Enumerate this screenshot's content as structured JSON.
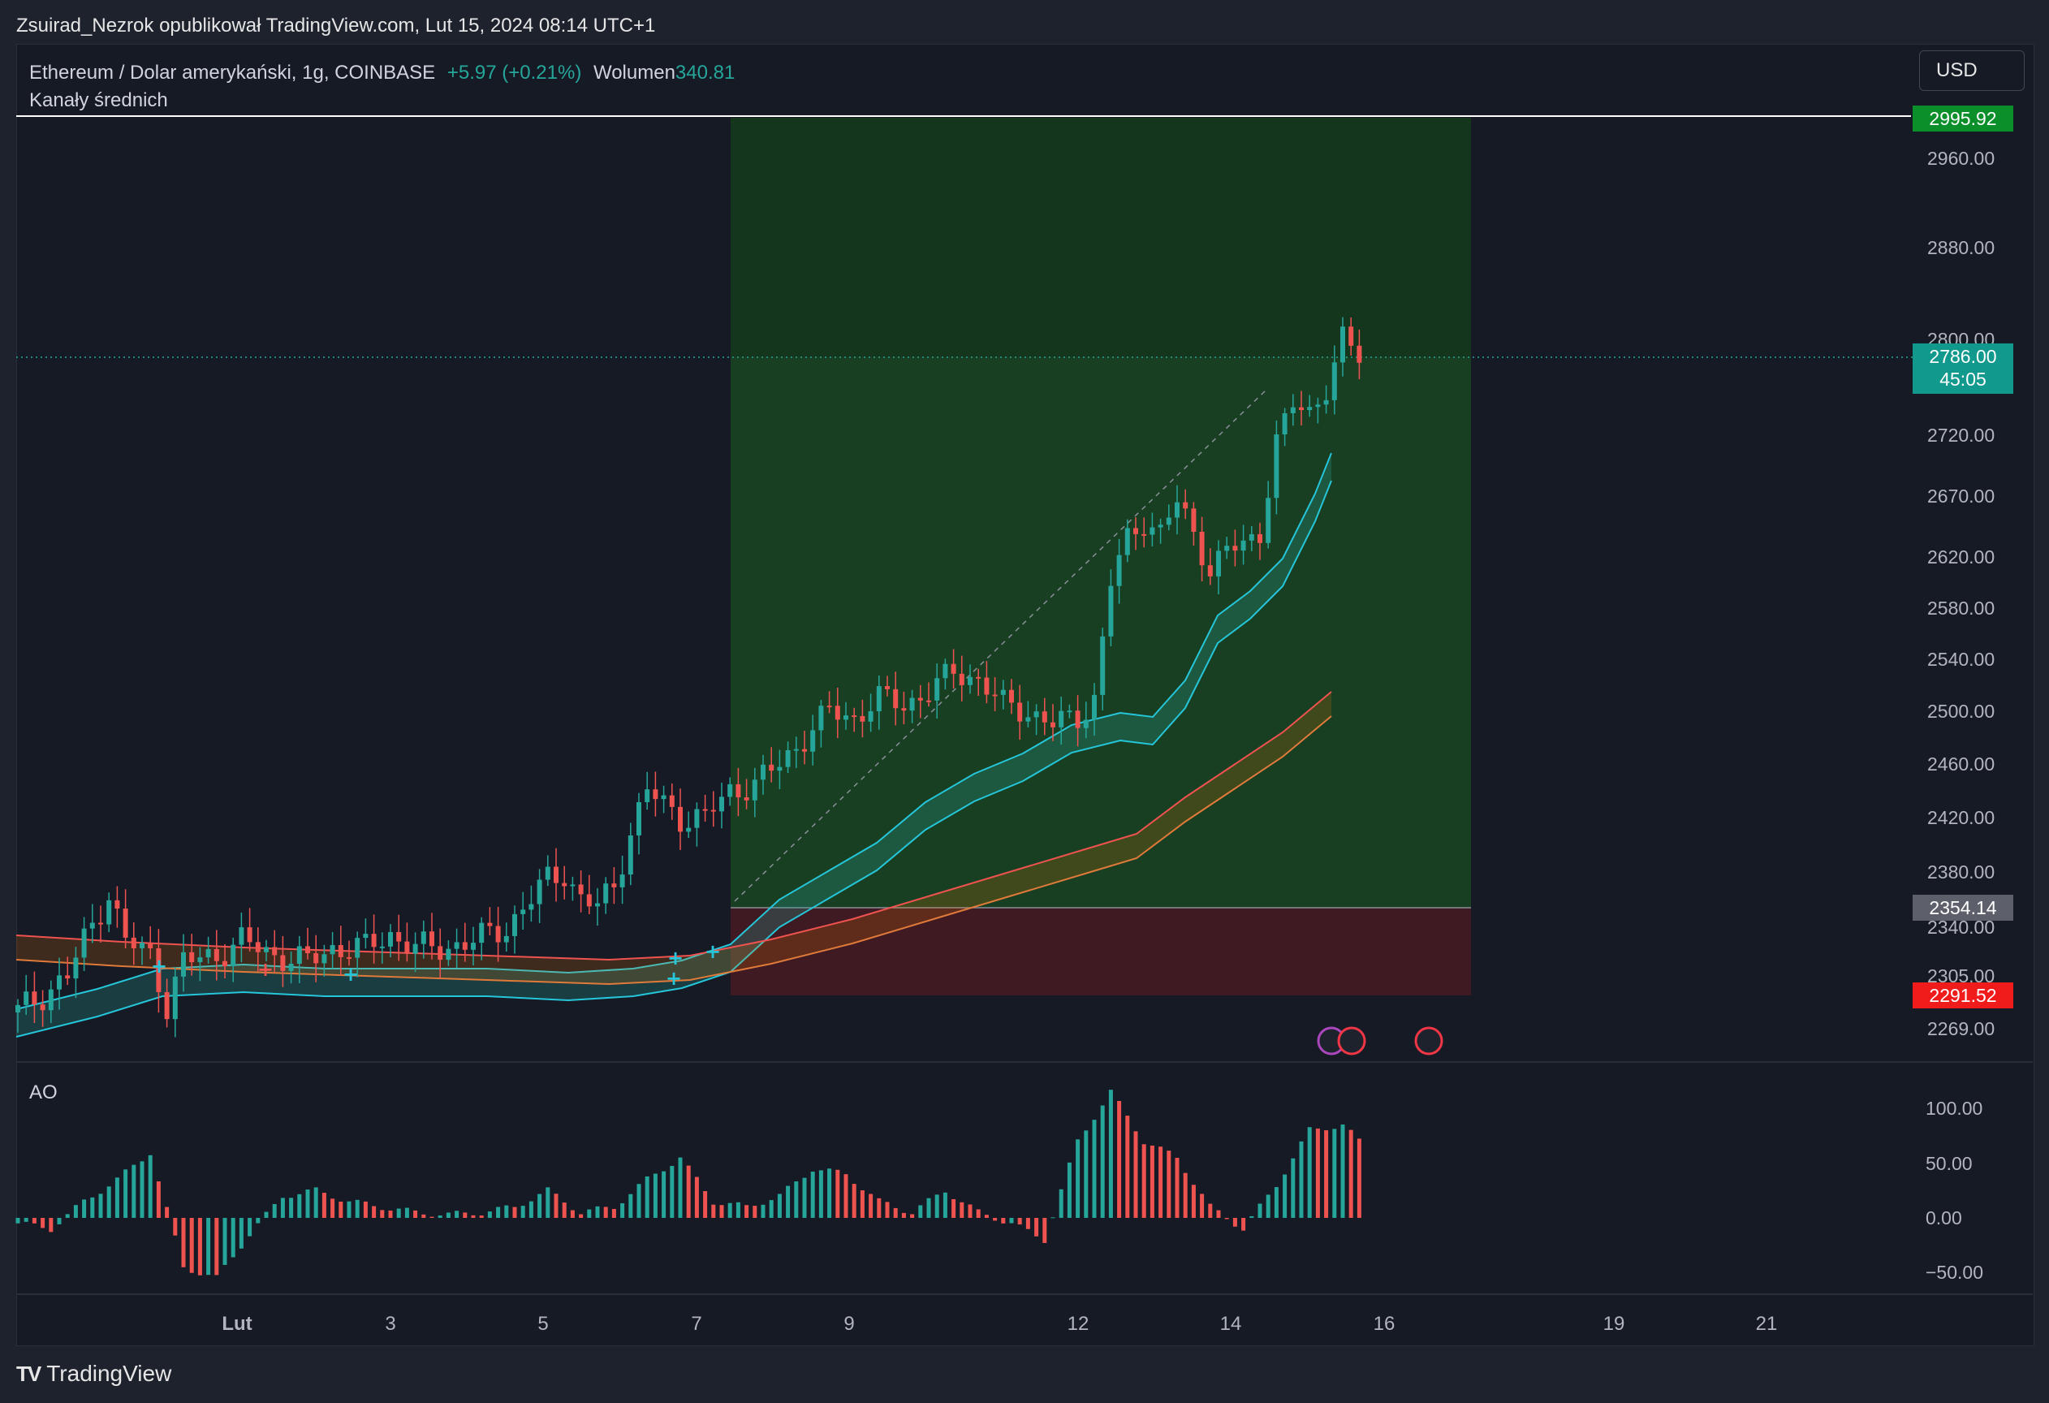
{
  "header": {
    "published": "Zsuirad_Nezrok opublikował TradingView.com, Lut 15, 2024 08:14 UTC+1"
  },
  "legend": {
    "symbol": "Ethereum / Dolar amerykański, 1g, COINBASE",
    "change": "+5.97 (+0.21%)",
    "volume_label": "Wolumen",
    "volume_value": "340.81",
    "indicator": "Kanały średnich",
    "oscillator": "AO"
  },
  "currency_button": "USD",
  "price_axis": {
    "ticks": [
      "2960.00",
      "2880.00",
      "2800.00",
      "2720.00",
      "2670.00",
      "2620.00",
      "2580.00",
      "2540.00",
      "2500.00",
      "2460.00",
      "2420.00",
      "2380.00",
      "2340.00",
      "2305.00",
      "2269.00"
    ],
    "target_label": "2995.92",
    "current_price": "2786.00",
    "countdown": "45:05",
    "entry_label": "2354.14",
    "stop_label": "2291.52"
  },
  "ao_axis": {
    "ticks": [
      "100.00",
      "50.00",
      "0.00",
      "−50.00"
    ]
  },
  "time_axis": {
    "labels": [
      "Lut",
      "3",
      "5",
      "7",
      "9",
      "12",
      "14",
      "16",
      "19",
      "21"
    ]
  },
  "footer": {
    "brand": "TradingView"
  },
  "colors": {
    "background": "#161a25",
    "bull": "#26a69a",
    "bear": "#ef5350",
    "profit_zone": "#1b5e20",
    "loss_zone": "#4a1a22",
    "target": "#089981",
    "stop": "#f23645"
  },
  "chart_data": {
    "type": "candlestick",
    "symbol": "ETH/USD",
    "timeframe": "1g",
    "x_labels": [
      "Lut",
      "3",
      "5",
      "7",
      "9",
      "12",
      "14",
      "16",
      "19",
      "21"
    ],
    "y_range": [
      2260,
      3010
    ],
    "close_path": [
      [
        0,
        2280
      ],
      [
        6,
        2305
      ],
      [
        8,
        2330
      ],
      [
        11,
        2365
      ],
      [
        13,
        2330
      ],
      [
        16,
        2320
      ],
      [
        18,
        2285
      ],
      [
        20,
        2315
      ],
      [
        24,
        2320
      ],
      [
        27,
        2330
      ],
      [
        31,
        2320
      ],
      [
        35,
        2315
      ],
      [
        38,
        2325
      ],
      [
        42,
        2325
      ],
      [
        45,
        2335
      ],
      [
        48,
        2325
      ],
      [
        51,
        2325
      ],
      [
        55,
        2330
      ],
      [
        59,
        2340
      ],
      [
        62,
        2360
      ],
      [
        64,
        2375
      ],
      [
        66,
        2380
      ],
      [
        68,
        2360
      ],
      [
        70,
        2355
      ],
      [
        72,
        2370
      ],
      [
        74,
        2410
      ],
      [
        76,
        2440
      ],
      [
        80,
        2420
      ],
      [
        83,
        2420
      ],
      [
        86,
        2440
      ],
      [
        89,
        2445
      ],
      [
        92,
        2460
      ],
      [
        95,
        2480
      ],
      [
        98,
        2500
      ],
      [
        101,
        2495
      ],
      [
        104,
        2510
      ],
      [
        107,
        2505
      ],
      [
        110,
        2515
      ],
      [
        113,
        2530
      ],
      [
        116,
        2525
      ],
      [
        119,
        2505
      ],
      [
        122,
        2500
      ],
      [
        125,
        2490
      ],
      [
        128,
        2495
      ],
      [
        130,
        2510
      ],
      [
        132,
        2600
      ],
      [
        134,
        2635
      ],
      [
        136,
        2650
      ],
      [
        138,
        2640
      ],
      [
        140,
        2665
      ],
      [
        142,
        2640
      ],
      [
        144,
        2610
      ],
      [
        146,
        2625
      ],
      [
        148,
        2630
      ],
      [
        150,
        2640
      ],
      [
        152,
        2715
      ],
      [
        154,
        2745
      ],
      [
        156,
        2740
      ],
      [
        158,
        2760
      ],
      [
        160,
        2800
      ],
      [
        162,
        2786
      ]
    ],
    "position": {
      "target": 2995.92,
      "entry": 2354.14,
      "stop": 2291.52,
      "current": 2786.0
    },
    "ao_range": [
      -60,
      120
    ],
    "ao_bars": [
      [
        0,
        -5
      ],
      [
        4,
        -10
      ],
      [
        8,
        15
      ],
      [
        12,
        35
      ],
      [
        16,
        60
      ],
      [
        20,
        -45
      ],
      [
        24,
        -55
      ],
      [
        28,
        -15
      ],
      [
        32,
        20
      ],
      [
        36,
        25
      ],
      [
        40,
        15
      ],
      [
        44,
        10
      ],
      [
        48,
        5
      ],
      [
        52,
        3
      ],
      [
        56,
        5
      ],
      [
        60,
        10
      ],
      [
        64,
        25
      ],
      [
        68,
        5
      ],
      [
        72,
        10
      ],
      [
        76,
        35
      ],
      [
        80,
        55
      ],
      [
        84,
        15
      ],
      [
        88,
        10
      ],
      [
        92,
        20
      ],
      [
        96,
        45
      ],
      [
        100,
        40
      ],
      [
        104,
        15
      ],
      [
        108,
        5
      ],
      [
        112,
        25
      ],
      [
        116,
        5
      ],
      [
        120,
        -5
      ],
      [
        124,
        -20
      ],
      [
        128,
        70
      ],
      [
        132,
        115
      ],
      [
        136,
        70
      ],
      [
        140,
        55
      ],
      [
        144,
        10
      ],
      [
        148,
        -10
      ],
      [
        152,
        30
      ],
      [
        156,
        80
      ],
      [
        160,
        85
      ],
      [
        162,
        70
      ]
    ]
  }
}
